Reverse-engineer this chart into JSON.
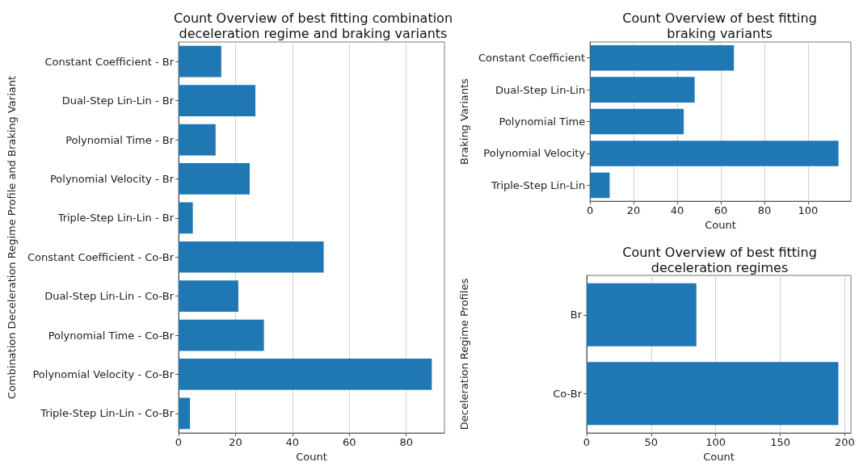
{
  "chart_data": [
    {
      "type": "bar",
      "orientation": "horizontal",
      "title": "Count Overview of best fitting combination\ndeceleration regime and braking variants",
      "xlabel": "Count",
      "ylabel": "Combination Deceleration Regime Profile and Braking Variant",
      "categories": [
        "Constant Coefficient - Br",
        "Dual-Step Lin-Lin - Br",
        "Polynomial Time - Br",
        "Polynomial Velocity - Br",
        "Triple-Step Lin-Lin - Br",
        "Constant Coefficient - Co-Br",
        "Dual-Step Lin-Lin - Co-Br",
        "Polynomial Time - Co-Br",
        "Polynomial Velocity - Co-Br",
        "Triple-Step Lin-Lin - Co-Br"
      ],
      "values": [
        15,
        27,
        13,
        25,
        5,
        51,
        21,
        30,
        89,
        4
      ],
      "color": "#1f77b4",
      "xlim": [
        0,
        93.45
      ],
      "xticks": [
        0,
        20,
        40,
        60,
        80
      ],
      "grid": "x"
    },
    {
      "type": "bar",
      "orientation": "horizontal",
      "title": "Count Overview of best fitting\nbraking variants",
      "xlabel": "Count",
      "ylabel": "Braking Variants",
      "categories": [
        "Constant Coefficient",
        "Dual-Step Lin-Lin",
        "Polynomial Time",
        "Polynomial Velocity",
        "Triple-Step Lin-Lin"
      ],
      "values": [
        66,
        48,
        43,
        114,
        9
      ],
      "color": "#1f77b4",
      "xlim": [
        0,
        119.7
      ],
      "xticks": [
        0,
        20,
        40,
        60,
        80,
        100
      ],
      "grid": "x"
    },
    {
      "type": "bar",
      "orientation": "horizontal",
      "title": "Count Overview of best fitting\ndeceleration regimes",
      "xlabel": "Count",
      "ylabel": "Deceleration Regime Profiles",
      "categories": [
        "Br",
        "Co-Br"
      ],
      "values": [
        85,
        195
      ],
      "color": "#1f77b4",
      "xlim": [
        0,
        204.75
      ],
      "xticks": [
        0,
        50,
        100,
        150,
        200
      ],
      "grid": "x"
    }
  ]
}
